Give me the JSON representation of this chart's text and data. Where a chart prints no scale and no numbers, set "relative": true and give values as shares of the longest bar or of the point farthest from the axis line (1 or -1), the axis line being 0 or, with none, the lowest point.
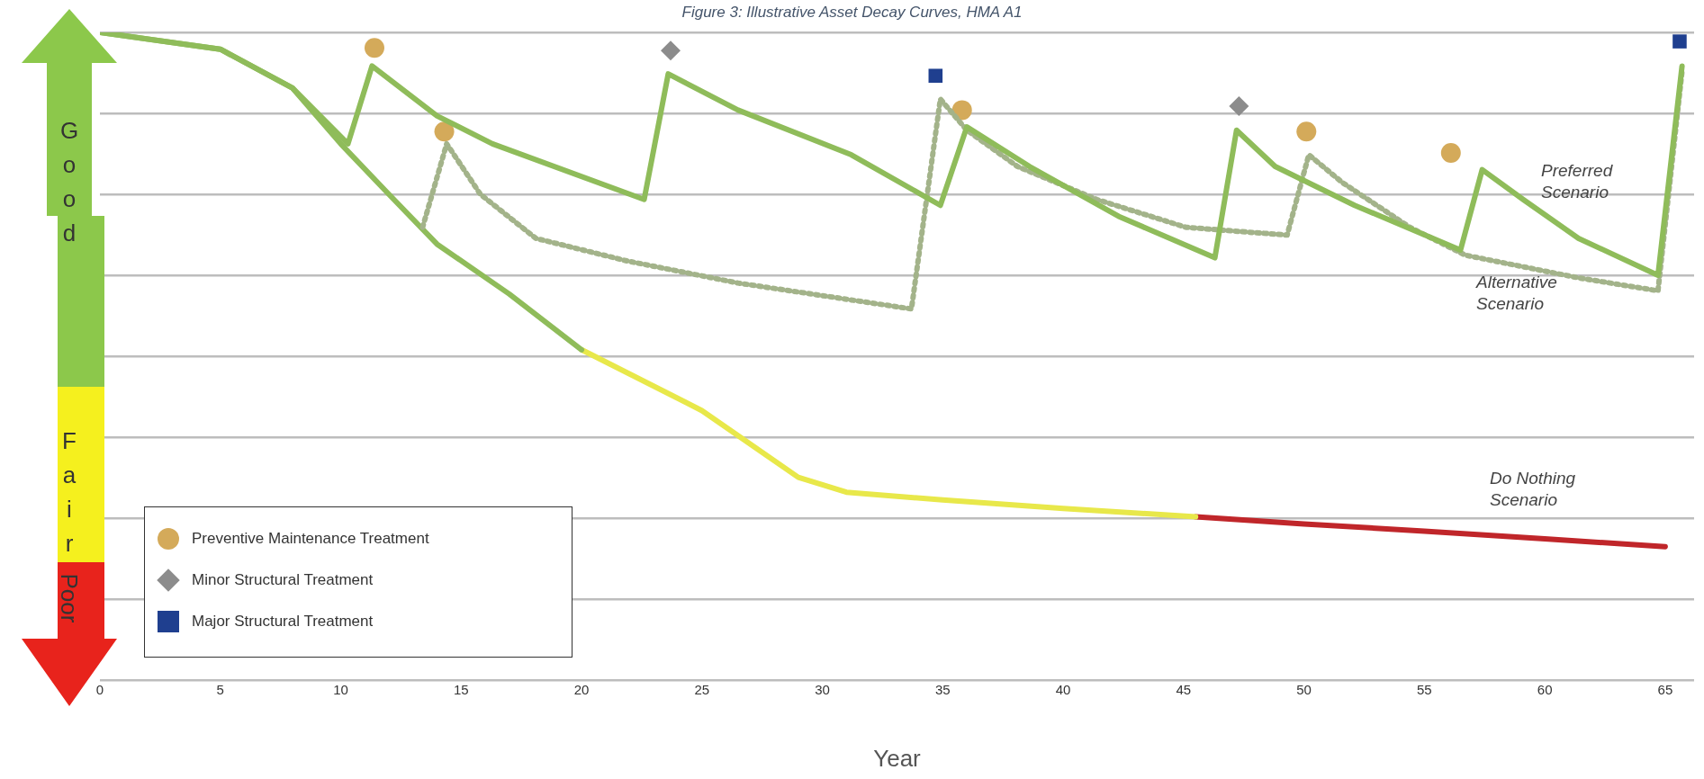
{
  "chart_data": {
    "type": "line",
    "title": "Figure 3: Illustrative Asset Decay Curves, HMA A1",
    "xlabel": "Year",
    "relative": true,
    "xlim": [
      0,
      66.2
    ],
    "xticks": [
      0,
      5,
      10,
      15,
      20,
      25,
      30,
      35,
      40,
      45,
      50,
      55,
      60,
      65
    ],
    "grid": "y",
    "legend": "bottom left",
    "marker": "none",
    "annotations": [
      "Preferred Scenario",
      "Alternative Scenario",
      "Do Nothing Scenario",
      "Good",
      "Fair",
      "Poor"
    ],
    "series": [
      {
        "type": "line",
        "color": "#8fbc5a",
        "x": [
          0,
          5,
          8,
          10.3,
          11.3,
          14,
          16.3,
          22.6,
          23.6,
          26.5,
          31.2,
          34.9,
          36,
          38.6,
          42.3,
          46.3,
          47.2,
          48.8,
          52.1,
          56.5,
          57.4,
          59.1,
          61.4,
          64.7,
          65.7
        ],
        "values": [
          1.0,
          0.974,
          0.914,
          0.828,
          0.948,
          0.871,
          0.828,
          0.742,
          0.936,
          0.88,
          0.811,
          0.733,
          0.854,
          0.793,
          0.716,
          0.652,
          0.849,
          0.793,
          0.733,
          0.664,
          0.788,
          0.742,
          0.682,
          0.625,
          0.948
        ]
      },
      {
        "type": "line",
        "color": "#a3b38a",
        "line_style": "dotted",
        "x": [
          13.4,
          14.4,
          15.8,
          18.1,
          21.9,
          26.5,
          33.7,
          34.9,
          36,
          38.1,
          41.4,
          45.1,
          49.3,
          50.2,
          51.6,
          54.4,
          56.7,
          61.4,
          64.7,
          65.7
        ],
        "values": [
          0.699,
          0.828,
          0.75,
          0.682,
          0.647,
          0.613,
          0.573,
          0.897,
          0.849,
          0.793,
          0.742,
          0.699,
          0.687,
          0.811,
          0.768,
          0.699,
          0.656,
          0.621,
          0.601,
          0.94
        ]
      },
      {
        "type": "line",
        "color": "#8fbc5a",
        "x": [
          0,
          5,
          8,
          10,
          12,
          14,
          17,
          20
        ],
        "values": [
          1.0,
          0.974,
          0.914,
          0.828,
          0.75,
          0.673,
          0.596,
          0.51
        ]
      },
      {
        "type": "line",
        "color": "#e8e84a",
        "x": [
          20,
          25,
          29,
          31,
          35,
          40,
          45.5
        ],
        "values": [
          0.51,
          0.416,
          0.313,
          0.29,
          0.278,
          0.265,
          0.252
        ]
      },
      {
        "type": "line",
        "color": "#c0262a",
        "x": [
          45.5,
          50,
          55,
          60,
          65
        ],
        "values": [
          0.252,
          0.241,
          0.23,
          0.218,
          0.206
        ]
      },
      {
        "type": "scatter",
        "name": "Preventive Maintenance Treatment",
        "color": "#d4aa5a",
        "marker": "circle",
        "x": [
          11.4,
          14.3,
          35.8,
          50.1,
          56.1
        ],
        "values": [
          0.976,
          0.847,
          0.88,
          0.847,
          0.814
        ]
      },
      {
        "type": "scatter",
        "name": "Minor Structural Treatment",
        "color": "#8c8c8c",
        "marker": "diamond",
        "x": [
          23.7,
          47.3
        ],
        "values": [
          0.972,
          0.886
        ]
      },
      {
        "type": "scatter",
        "name": "Major Structural Treatment",
        "color": "#1f3f8f",
        "marker": "square",
        "x": [
          34.7,
          65.6
        ],
        "values": [
          0.933,
          0.986
        ]
      }
    ]
  }
}
